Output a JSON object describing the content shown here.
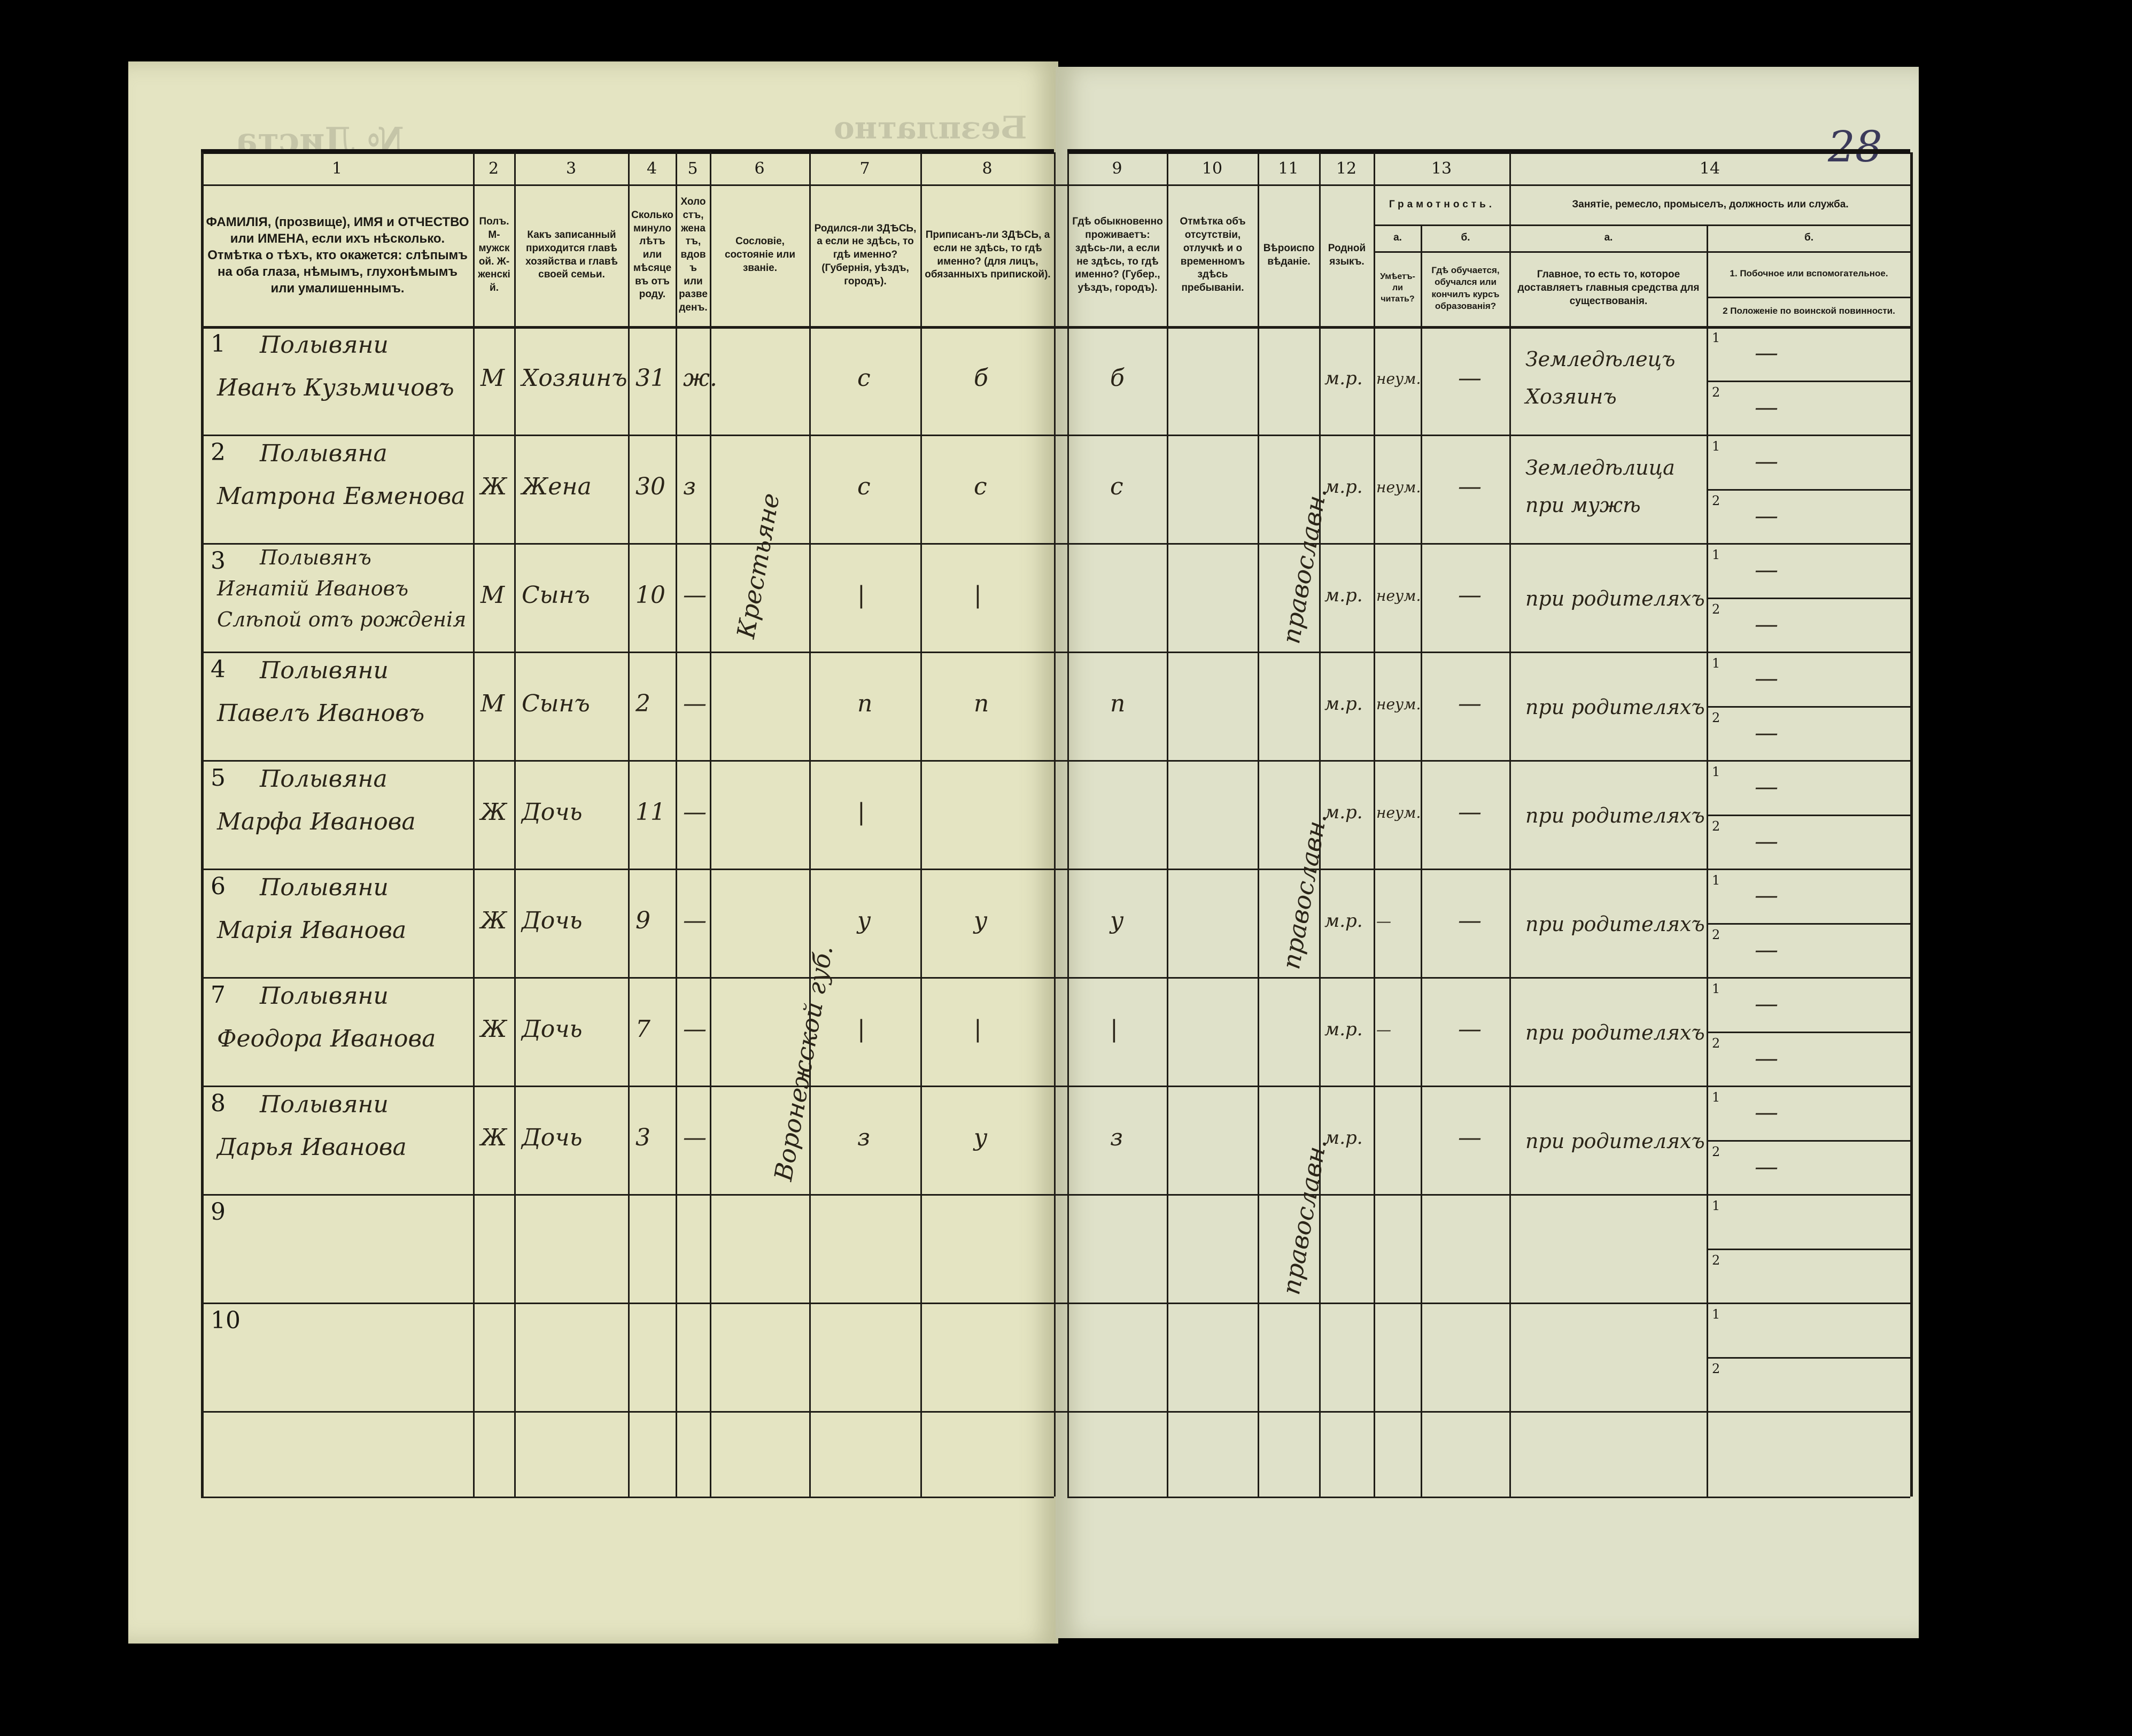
{
  "document": {
    "page_number": "28",
    "show_through": [
      "Безплатно",
      "№ Листа"
    ]
  },
  "header": {
    "col_numbers": [
      "1",
      "2",
      "3",
      "4",
      "5",
      "6",
      "7",
      "8",
      "9",
      "10",
      "11",
      "12",
      "13",
      "14"
    ],
    "col1": "ФАМИЛІЯ, (прозвище), ИМЯ и ОТЧЕСТВО или ИМЕНА, если ихъ нѣсколько. Отмѣтка о тѣхъ, кто окажется: слѣпымъ на оба глаза, нѣмымъ, глухонѣмымъ или умалишеннымъ.",
    "col2": "Полъ. М-мужской. Ж-женскій.",
    "col3": "Какъ записанный приходится главѣ хозяйства и главѣ своей семьи.",
    "col4": "Сколько минуло лѣтъ или мѣсяцевъ отъ роду.",
    "col5": "Холостъ, женатъ, вдовъ или разведенъ.",
    "col6": "Сословіе, состояніе или званіе.",
    "col7": "Родился-ли ЗДѢСЬ, а если не здѣсь, то гдѣ именно? (Губернія, уѣздъ, городъ).",
    "col8": "Приписанъ-ли ЗДѢСЬ, а если не здѣсь, то гдѣ именно? (для лицъ, обязанныхъ припиской).",
    "col9": "Гдѣ обыкновенно проживаетъ: здѣсь-ли, а если не здѣсь, то гдѣ именно? (Губер., уѣздъ, городъ).",
    "col10": "Отмѣтка объ отсутствіи, отлучкѣ и о временномъ здѣсь пребываніи.",
    "col11": "Вѣроисповѣданіе.",
    "col12": "Родной языкъ.",
    "col13_title": "Грамотность.",
    "col13a_letter": "а.",
    "col13a": "Умѣетъ-ли читать?",
    "col13b_letter": "б.",
    "col13b": "Гдѣ обучается, обучался или кончилъ курсъ образованія?",
    "col14_title": "Занятіе, ремесло, промыселъ, должность или служба.",
    "col14a_letter": "а.",
    "col14a": "Главное, то есть то, которое доставляетъ главныя средства для существованія.",
    "col14b_letter": "б.",
    "col14b1": "1. Побочное или вспомогательное.",
    "col14b2": "2 Положеніе по воинской повинности."
  },
  "rows": [
    {
      "num": "1",
      "name": [
        "Полывяни",
        "Иванъ Кузьмичовъ"
      ],
      "sex": "М",
      "relation": "Хозяинъ",
      "age": "31",
      "marital": "ж.",
      "c6": "",
      "c7": "с",
      "c8": "б",
      "c9": "б",
      "c12": "м.р.",
      "c13a": "неум.",
      "c13b": "—",
      "c14a": [
        "Земледѣлецъ",
        "Хозяинъ"
      ],
      "c14b1": "—",
      "c14b2": "—"
    },
    {
      "num": "2",
      "name": [
        "Полывяна",
        "Матрона Евменова"
      ],
      "sex": "Ж",
      "relation": "Жена",
      "age": "30",
      "marital": "з",
      "c6": "",
      "c7": "с",
      "c8": "с",
      "c9": "с",
      "c12": "м.р.",
      "c13a": "неум.",
      "c13b": "—",
      "c14a": [
        "Земледѣлица",
        "при мужѣ"
      ],
      "c14b1": "—",
      "c14b2": "—"
    },
    {
      "num": "3",
      "name": [
        "Полывянъ",
        "Игнатій Ивановъ",
        "Слѣпой отъ рожденія"
      ],
      "sex": "М",
      "relation": "Сынъ",
      "age": "10",
      "marital": "—",
      "c6": "",
      "c7": "|",
      "c8": "|",
      "c9": "",
      "c12": "м.р.",
      "c13a": "неум.",
      "c13b": "—",
      "c14a": [
        "при родителяхъ"
      ],
      "c14b1": "—",
      "c14b2": "—"
    },
    {
      "num": "4",
      "name": [
        "Полывяни",
        "Павелъ Ивановъ"
      ],
      "sex": "М",
      "relation": "Сынъ",
      "age": "2",
      "marital": "—",
      "c6": "",
      "c7": "п",
      "c8": "п",
      "c9": "п",
      "c12": "м.р.",
      "c13a": "неум.",
      "c13b": "—",
      "c14a": [
        "при родителяхъ"
      ],
      "c14b1": "—",
      "c14b2": "—"
    },
    {
      "num": "5",
      "name": [
        "Полывяна",
        "Марфа Иванова"
      ],
      "sex": "Ж",
      "relation": "Дочь",
      "age": "11",
      "marital": "—",
      "c6": "",
      "c7": "|",
      "c8": "",
      "c9": "",
      "c12": "м.р.",
      "c13a": "неум.",
      "c13b": "—",
      "c14a": [
        "при родителяхъ"
      ],
      "c14b1": "—",
      "c14b2": "—"
    },
    {
      "num": "6",
      "name": [
        "Полывяни",
        "Марія Иванова"
      ],
      "sex": "Ж",
      "relation": "Дочь",
      "age": "9",
      "marital": "—",
      "c6": "",
      "c7": "у",
      "c8": "у",
      "c9": "у",
      "c12": "м.р.",
      "c13a": "—",
      "c13b": "—",
      "c14a": [
        "при родителяхъ"
      ],
      "c14b1": "—",
      "c14b2": "—"
    },
    {
      "num": "7",
      "name": [
        "Полывяни",
        "Феодора Иванова"
      ],
      "sex": "Ж",
      "relation": "Дочь",
      "age": "7",
      "marital": "—",
      "c6": "",
      "c7": "|",
      "c8": "|",
      "c9": "|",
      "c12": "м.р.",
      "c13a": "—",
      "c13b": "—",
      "c14a": [
        "при родителяхъ"
      ],
      "c14b1": "—",
      "c14b2": "—"
    },
    {
      "num": "8",
      "name": [
        "Полывяни",
        "Дарья Иванова"
      ],
      "sex": "Ж",
      "relation": "Дочь",
      "age": "3",
      "marital": "—",
      "c6": "",
      "c7": "з",
      "c8": "у",
      "c9": "з",
      "c12": "м.р.",
      "c13a": "",
      "c13b": "—",
      "c14a": [
        "при родителяхъ"
      ],
      "c14b1": "—",
      "c14b2": "—"
    },
    {
      "num": "9",
      "name": [],
      "sex": "",
      "relation": "",
      "age": "",
      "marital": "",
      "c6": "",
      "c7": "",
      "c8": "",
      "c9": "",
      "c12": "",
      "c13a": "",
      "c13b": "",
      "c14a": [],
      "c14b1": "",
      "c14b2": ""
    },
    {
      "num": "10",
      "name": [],
      "sex": "",
      "relation": "",
      "age": "",
      "marital": "",
      "c6": "",
      "c7": "",
      "c8": "",
      "c9": "",
      "c12": "",
      "c13a": "",
      "c13b": "",
      "c14a": [],
      "c14b1": "",
      "c14b2": ""
    }
  ],
  "vertical_entries": {
    "col6": [
      "Крестьяне",
      "Воронежской губ."
    ],
    "col11": [
      "православн.",
      "православн.",
      "православн."
    ]
  },
  "sub_labels": {
    "one": "1",
    "two": "2"
  }
}
